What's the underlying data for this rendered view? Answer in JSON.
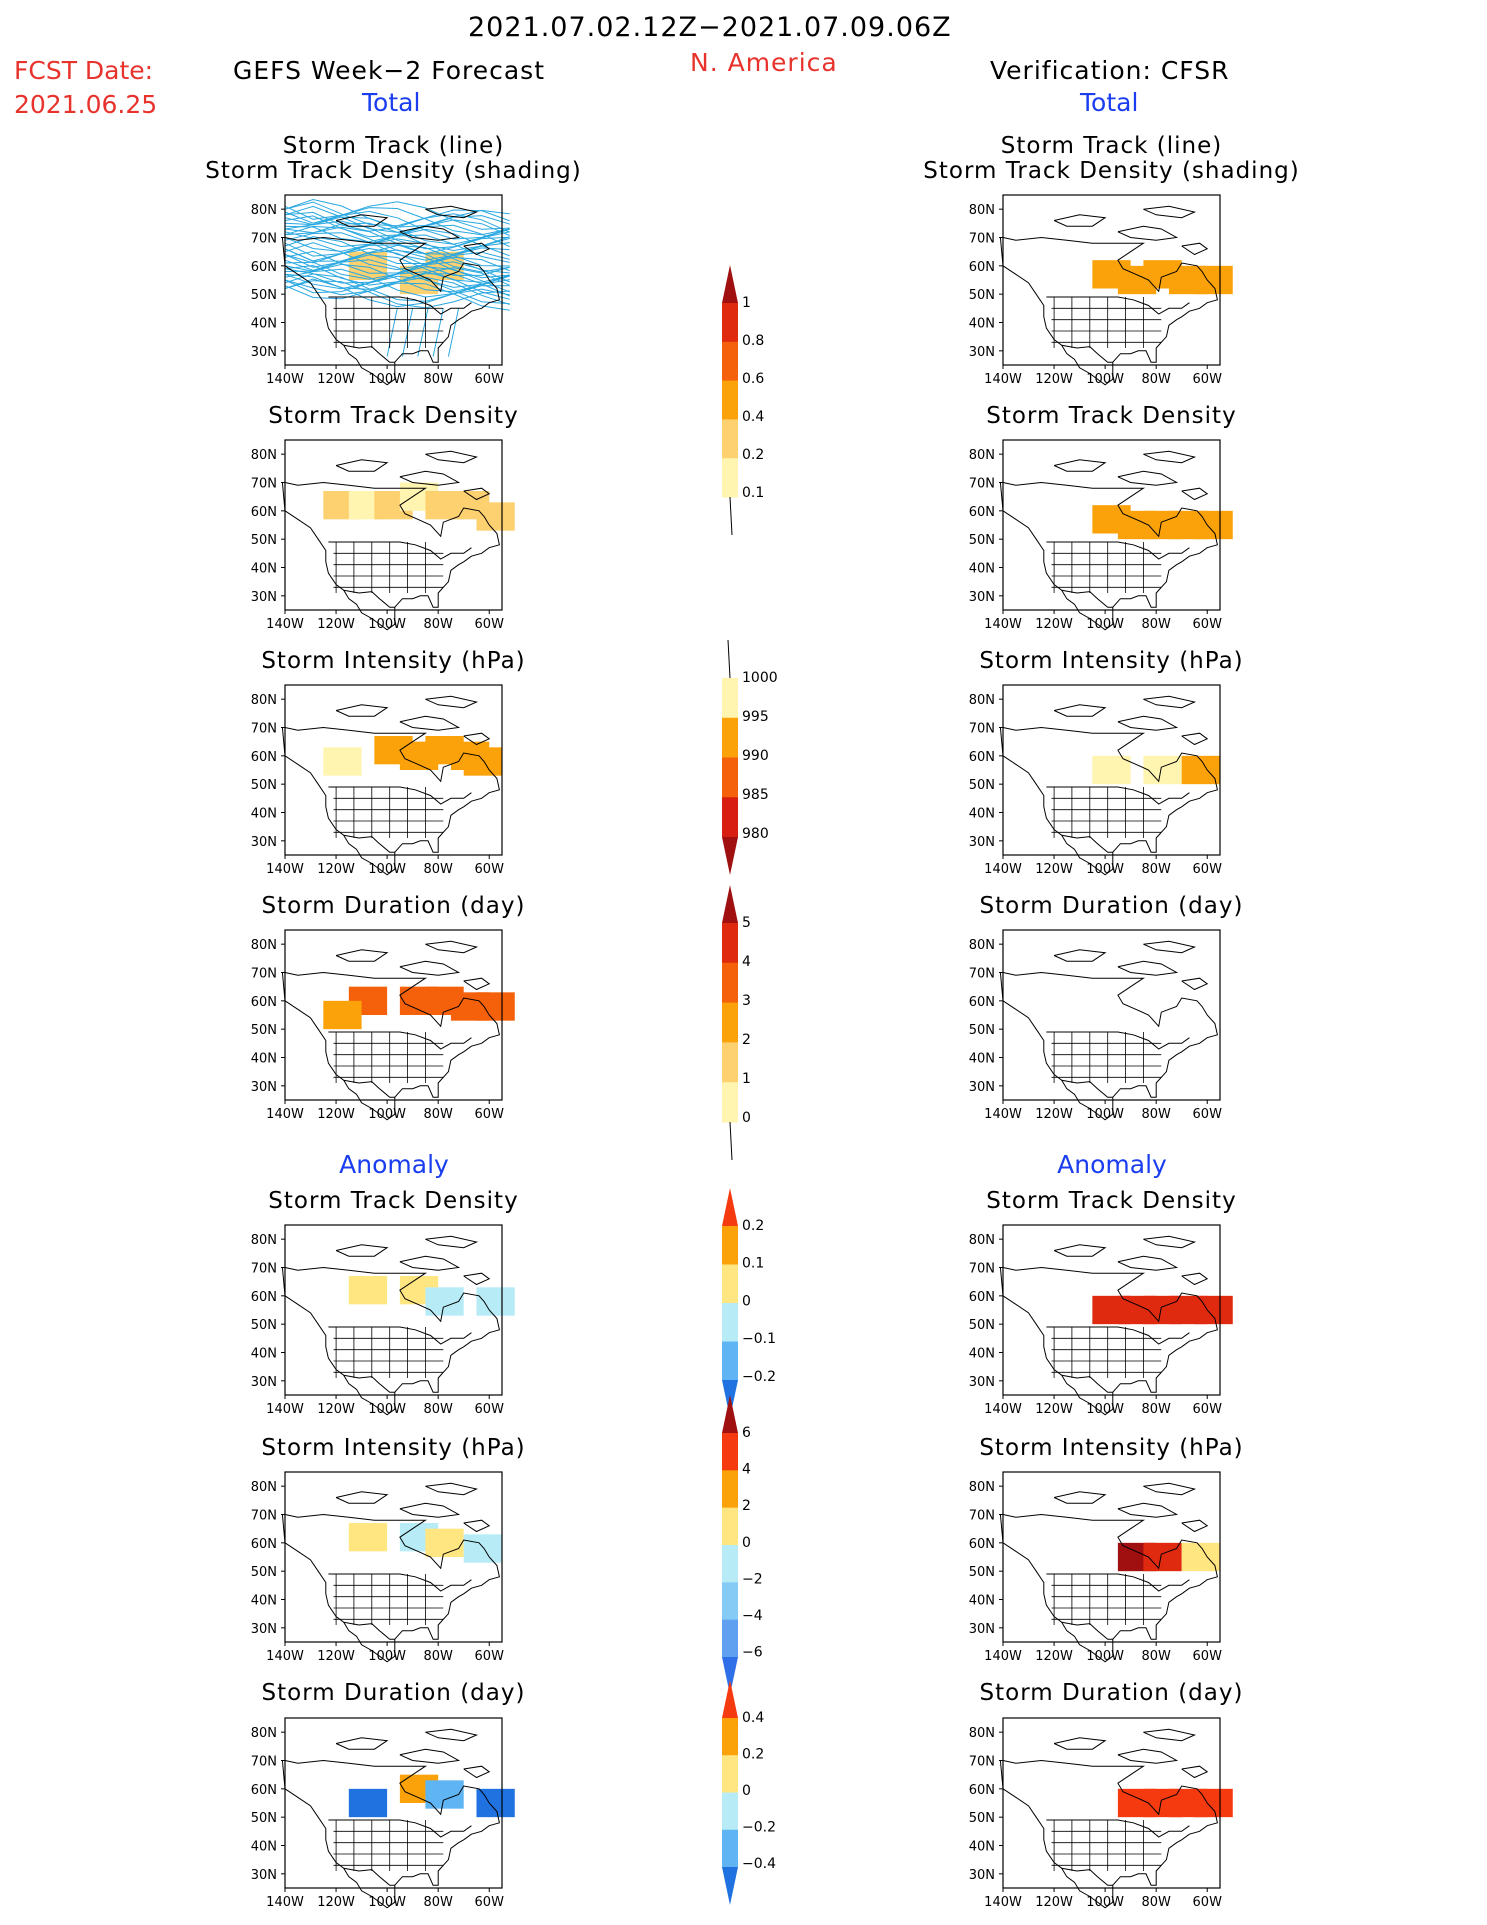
{
  "header": {
    "date_range": "2021.07.02.12Z−2021.07.09.06Z",
    "fcst_label": "FCST Date:",
    "fcst_date": "2021.06.25",
    "left_title": "GEFS Week−2 Forecast",
    "region": "N. America",
    "right_title": "Verification: CFSR",
    "total_label": "Total",
    "anomaly_label": "Anomaly"
  },
  "colors": {
    "track_line": "#29a8e0",
    "coast": "#000000",
    "title_red": "#e8322c",
    "title_blue": "#1a3df0"
  },
  "axes": {
    "lat_ticks": [
      "80N",
      "70N",
      "60N",
      "50N",
      "40N",
      "30N"
    ],
    "lon_ticks": [
      "140W",
      "120W",
      "100W",
      "80W",
      "60W"
    ]
  },
  "panel_titles": [
    [
      "Storm Track (line)",
      "Storm Track Density (shading)"
    ],
    [
      "Storm Track Density"
    ],
    [
      "Storm Intensity (hPa)"
    ],
    [
      "Storm Duration (day)"
    ],
    [
      "Storm Track Density"
    ],
    [
      "Storm Intensity (hPa)"
    ],
    [
      "Storm Duration (day)"
    ]
  ],
  "colorbars": [
    {
      "labels": [
        "1",
        "0.8",
        "0.6",
        "0.4",
        "0.2",
        "0.1"
      ],
      "colors": [
        "#a01010",
        "#e02a10",
        "#f5600a",
        "#fba20a",
        "#fdd070",
        "#fff4b0"
      ]
    },
    {
      "labels": [
        "1000",
        "995",
        "990",
        "985",
        "980"
      ],
      "colors": [
        "#fff4b0",
        "#fba20a",
        "#f5600a",
        "#d81e10",
        "#a01010"
      ]
    },
    {
      "labels": [
        "5",
        "4",
        "3",
        "2",
        "1",
        "0"
      ],
      "colors": [
        "#a01010",
        "#e02a10",
        "#f5600a",
        "#fba20a",
        "#fdd070",
        "#fff4b0"
      ]
    },
    {
      "labels": [
        "0.2",
        "0.1",
        "0",
        "−0.1",
        "−0.2"
      ],
      "colors": [
        "#f53a10",
        "#fba20a",
        "#ffe680",
        "#b7ecf7",
        "#5fb4f4",
        "#1f72e0"
      ]
    },
    {
      "labels": [
        "6",
        "4",
        "2",
        "0",
        "−2",
        "−4",
        "−6"
      ],
      "colors": [
        "#a01010",
        "#f53a10",
        "#fba20a",
        "#ffe680",
        "#b7ecf7",
        "#86caf6",
        "#5fa0f0",
        "#2f70e8"
      ]
    },
    {
      "labels": [
        "0.4",
        "0.2",
        "0",
        "−0.2",
        "−0.4"
      ],
      "colors": [
        "#f53a10",
        "#fba20a",
        "#ffe680",
        "#b7ecf7",
        "#5fb4f4",
        "#1f72e0"
      ]
    }
  ],
  "chart_data": [
    {
      "type": "heatmap",
      "panel": "Storm Track (line) / Storm Track Density (shading)",
      "model": "GEFS Week−2 Forecast",
      "ylabel": "",
      "xlabel": "",
      "xlim": [
        "140W",
        "55W"
      ],
      "ylim": [
        "25N",
        "85N"
      ],
      "cells": [
        [
          "80W",
          "60N",
          0.2
        ],
        [
          "110W",
          "60N",
          0.2
        ],
        [
          "90W",
          "55N",
          0.2
        ]
      ]
    },
    {
      "type": "heatmap",
      "panel": "Storm Track (line) / Storm Track Density (shading)",
      "model": "Verification: CFSR",
      "xlim": [
        "140W",
        "55W"
      ],
      "ylim": [
        "25N",
        "85N"
      ],
      "cells": [
        [
          "100W",
          "57N",
          0.4
        ],
        [
          "90W",
          "55N",
          0.4
        ],
        [
          "80W",
          "57N",
          0.4
        ],
        [
          "70W",
          "55N",
          0.4
        ],
        [
          "60W",
          "55N",
          0.4
        ]
      ]
    },
    {
      "type": "heatmap",
      "panel": "Storm Track Density",
      "model": "GEFS Week−2 Forecast",
      "xlim": [
        "140W",
        "55W"
      ],
      "ylim": [
        "25N",
        "85N"
      ],
      "cells": [
        [
          "120W",
          "62N",
          0.2
        ],
        [
          "110W",
          "62N",
          0.1
        ],
        [
          "100W",
          "62N",
          0.2
        ],
        [
          "90W",
          "65N",
          0.1
        ],
        [
          "80W",
          "62N",
          0.2
        ],
        [
          "70W",
          "62N",
          0.2
        ],
        [
          "60W",
          "58N",
          0.2
        ]
      ]
    },
    {
      "type": "heatmap",
      "panel": "Storm Track Density",
      "model": "Verification: CFSR",
      "xlim": [
        "140W",
        "55W"
      ],
      "ylim": [
        "25N",
        "85N"
      ],
      "cells": [
        [
          "100W",
          "57N",
          0.4
        ],
        [
          "90W",
          "55N",
          0.4
        ],
        [
          "80W",
          "55N",
          0.4
        ],
        [
          "70W",
          "55N",
          0.4
        ],
        [
          "60W",
          "55N",
          0.4
        ]
      ]
    },
    {
      "type": "heatmap",
      "panel": "Storm Intensity (hPa)",
      "model": "GEFS Week−2 Forecast",
      "xlim": [
        "140W",
        "55W"
      ],
      "ylim": [
        "25N",
        "85N"
      ],
      "cells": [
        [
          "100W",
          "62N",
          995
        ],
        [
          "90W",
          "60N",
          995
        ],
        [
          "80W",
          "62N",
          995
        ],
        [
          "70W",
          "60N",
          995
        ],
        [
          "65W",
          "58N",
          995
        ],
        [
          "120W",
          "58N",
          1000
        ]
      ]
    },
    {
      "type": "heatmap",
      "panel": "Storm Intensity (hPa)",
      "model": "Verification: CFSR",
      "xlim": [
        "140W",
        "55W"
      ],
      "ylim": [
        "25N",
        "85N"
      ],
      "cells": [
        [
          "100W",
          "55N",
          1000
        ],
        [
          "80W",
          "55N",
          1000
        ],
        [
          "65W",
          "55N",
          995
        ]
      ]
    },
    {
      "type": "heatmap",
      "panel": "Storm Duration (day)",
      "model": "GEFS Week−2 Forecast",
      "xlim": [
        "140W",
        "55W"
      ],
      "ylim": [
        "25N",
        "85N"
      ],
      "cells": [
        [
          "110W",
          "60N",
          3
        ],
        [
          "90W",
          "60N",
          3
        ],
        [
          "80W",
          "60N",
          3
        ],
        [
          "70W",
          "58N",
          3
        ],
        [
          "60W",
          "58N",
          3
        ],
        [
          "120W",
          "55N",
          2
        ]
      ]
    },
    {
      "type": "heatmap",
      "panel": "Storm Duration (day)",
      "model": "Verification: CFSR",
      "xlim": [
        "140W",
        "55W"
      ],
      "ylim": [
        "25N",
        "85N"
      ],
      "cells": []
    },
    {
      "type": "heatmap",
      "panel": "Anomaly Storm Track Density",
      "model": "GEFS Week−2 Forecast",
      "xlim": [
        "140W",
        "55W"
      ],
      "ylim": [
        "25N",
        "85N"
      ],
      "cells": [
        [
          "110W",
          "62N",
          0.05
        ],
        [
          "90W",
          "62N",
          0.05
        ],
        [
          "80W",
          "58N",
          -0.05
        ],
        [
          "60W",
          "58N",
          -0.05
        ]
      ]
    },
    {
      "type": "heatmap",
      "panel": "Anomaly Storm Track Density",
      "model": "Verification: CFSR",
      "xlim": [
        "140W",
        "55W"
      ],
      "ylim": [
        "25N",
        "85N"
      ],
      "cells": [
        [
          "100W",
          "55N",
          0.2
        ],
        [
          "90W",
          "55N",
          0.2
        ],
        [
          "80W",
          "55N",
          0.2
        ],
        [
          "70W",
          "55N",
          0.2
        ],
        [
          "60W",
          "55N",
          0.2
        ]
      ]
    },
    {
      "type": "heatmap",
      "panel": "Anomaly Storm Intensity (hPa)",
      "model": "GEFS Week−2 Forecast",
      "xlim": [
        "140W",
        "55W"
      ],
      "ylim": [
        "25N",
        "85N"
      ],
      "cells": [
        [
          "110W",
          "62N",
          1
        ],
        [
          "90W",
          "62N",
          -1
        ],
        [
          "80W",
          "60N",
          1
        ],
        [
          "65W",
          "58N",
          -1
        ]
      ]
    },
    {
      "type": "heatmap",
      "panel": "Anomaly Storm Intensity (hPa)",
      "model": "Verification: CFSR",
      "xlim": [
        "140W",
        "55W"
      ],
      "ylim": [
        "25N",
        "85N"
      ],
      "cells": [
        [
          "90W",
          "55N",
          6
        ],
        [
          "80W",
          "55N",
          4
        ],
        [
          "65W",
          "55N",
          1
        ]
      ]
    },
    {
      "type": "heatmap",
      "panel": "Anomaly Storm Duration (day)",
      "model": "GEFS Week−2 Forecast",
      "xlim": [
        "140W",
        "55W"
      ],
      "ylim": [
        "25N",
        "85N"
      ],
      "cells": [
        [
          "110W",
          "55N",
          -0.4
        ],
        [
          "90W",
          "60N",
          0.1
        ],
        [
          "80W",
          "58N",
          -0.2
        ],
        [
          "60W",
          "55N",
          -0.4
        ]
      ]
    },
    {
      "type": "heatmap",
      "panel": "Anomaly Storm Duration (day)",
      "model": "Verification: CFSR",
      "xlim": [
        "140W",
        "55W"
      ],
      "ylim": [
        "25N",
        "85N"
      ],
      "cells": [
        [
          "90W",
          "55N",
          0.4
        ],
        [
          "80W",
          "55N",
          0.4
        ],
        [
          "70W",
          "55N",
          0.4
        ],
        [
          "60W",
          "55N",
          0.4
        ]
      ]
    }
  ]
}
